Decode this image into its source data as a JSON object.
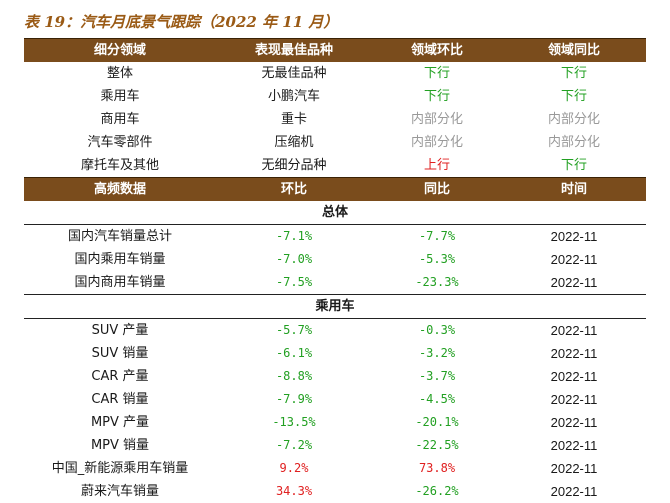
{
  "title": "表 19：汽车月底景气跟踪（2022 年 11 月）",
  "table1": {
    "headers": [
      "细分领域",
      "表现最佳品种",
      "领域环比",
      "领域同比"
    ],
    "rows": [
      {
        "segment": "整体",
        "best": "无最佳品种",
        "mom": "下行",
        "yoy": "下行"
      },
      {
        "segment": "乘用车",
        "best": "小鹏汽车",
        "mom": "下行",
        "yoy": "下行"
      },
      {
        "segment": "商用车",
        "best": "重卡",
        "mom": "内部分化",
        "yoy": "内部分化"
      },
      {
        "segment": "汽车零部件",
        "best": "压缩机",
        "mom": "内部分化",
        "yoy": "内部分化"
      },
      {
        "segment": "摩托车及其他",
        "best": "无细分品种",
        "mom": "上行",
        "yoy": "下行"
      }
    ]
  },
  "table2": {
    "headers": [
      "高频数据",
      "环比",
      "同比",
      "时间"
    ],
    "sections": [
      {
        "label": "总体",
        "rows": [
          {
            "name": "国内汽车销量总计",
            "mom": "-7.1%",
            "yoy": "-7.7%",
            "time": "2022-11"
          },
          {
            "name": "国内乘用车销量",
            "mom": "-7.0%",
            "yoy": "-5.3%",
            "time": "2022-11"
          },
          {
            "name": "国内商用车销量",
            "mom": "-7.5%",
            "yoy": "-23.3%",
            "time": "2022-11"
          }
        ]
      },
      {
        "label": "乘用车",
        "rows": [
          {
            "name": "SUV 产量",
            "mom": "-5.7%",
            "yoy": "-0.3%",
            "time": "2022-11"
          },
          {
            "name": "SUV 销量",
            "mom": "-6.1%",
            "yoy": "-3.2%",
            "time": "2022-11"
          },
          {
            "name": "CAR 产量",
            "mom": "-8.8%",
            "yoy": "-3.7%",
            "time": "2022-11"
          },
          {
            "name": "CAR 销量",
            "mom": "-7.9%",
            "yoy": "-4.5%",
            "time": "2022-11"
          },
          {
            "name": "MPV 产量",
            "mom": "-13.5%",
            "yoy": "-20.1%",
            "time": "2022-11"
          },
          {
            "name": "MPV 销量",
            "mom": "-7.2%",
            "yoy": "-22.5%",
            "time": "2022-11"
          },
          {
            "name": "中国_新能源乘用车销量",
            "mom": "9.2%",
            "yoy": "73.8%",
            "time": "2022-11"
          },
          {
            "name": "蔚来汽车销量",
            "mom": "34.3%",
            "yoy": "-26.2%",
            "time": "2022-11"
          }
        ]
      }
    ]
  },
  "colors": {
    "header_bg": "#7a4c1c",
    "title": "#9a5a15",
    "up": "#e02020",
    "down": "#22a022",
    "mixed": "#999999"
  }
}
